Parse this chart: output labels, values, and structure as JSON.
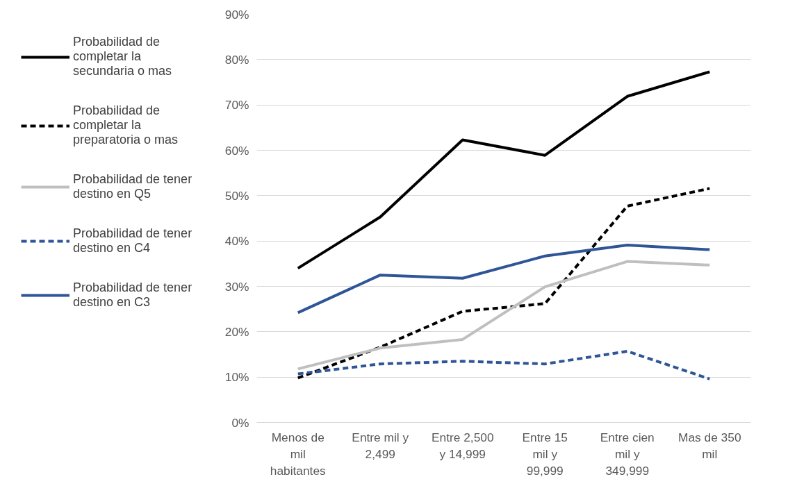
{
  "chart_data": {
    "type": "line",
    "categories": [
      "Menos de mil habitantes",
      "Entre mil y 2,499",
      "Entre 2,500 y 14,999",
      "Entre 15 mil y 99,999",
      "Entre cien mil y 349,999",
      "Mas de 350 mil"
    ],
    "series": [
      {
        "name": "Probabilidad de completar la secundaria o mas",
        "color": "#000000",
        "line_style": "solid",
        "values": [
          34.0,
          45.3,
          62.3,
          58.9,
          71.9,
          77.3
        ]
      },
      {
        "name": "Probabilidad de completar la preparatoria o mas",
        "color": "#000000",
        "line_style": "dashed",
        "values": [
          9.8,
          16.6,
          24.5,
          26.2,
          47.7,
          51.6
        ]
      },
      {
        "name": "Probabilidad de tener destino en Q5",
        "color": "#bfbfbf",
        "line_style": "solid",
        "values": [
          11.8,
          16.4,
          18.3,
          29.9,
          35.5,
          34.7
        ]
      },
      {
        "name": "Probabilidad de tener destino en C4",
        "color": "#2f5597",
        "line_style": "dashed",
        "values": [
          10.7,
          12.9,
          13.5,
          12.9,
          15.7,
          9.6
        ]
      },
      {
        "name": "Probabilidad de tener destino en C3",
        "color": "#2f5597",
        "line_style": "solid",
        "values": [
          24.2,
          32.5,
          31.8,
          36.7,
          39.1,
          38.1
        ]
      }
    ],
    "ylim": [
      0,
      90
    ],
    "yticks": [
      {
        "value": 0,
        "label": "0%"
      },
      {
        "value": 10,
        "label": "10%"
      },
      {
        "value": 20,
        "label": "20%"
      },
      {
        "value": 30,
        "label": "30%"
      },
      {
        "value": 40,
        "label": "40%"
      },
      {
        "value": 50,
        "label": "50%"
      },
      {
        "value": 60,
        "label": "60%"
      },
      {
        "value": 70,
        "label": "70%"
      },
      {
        "value": 80,
        "label": "80%"
      },
      {
        "value": 90,
        "label": "90%"
      }
    ],
    "grid": "y",
    "legend": "left",
    "marker": "none"
  }
}
